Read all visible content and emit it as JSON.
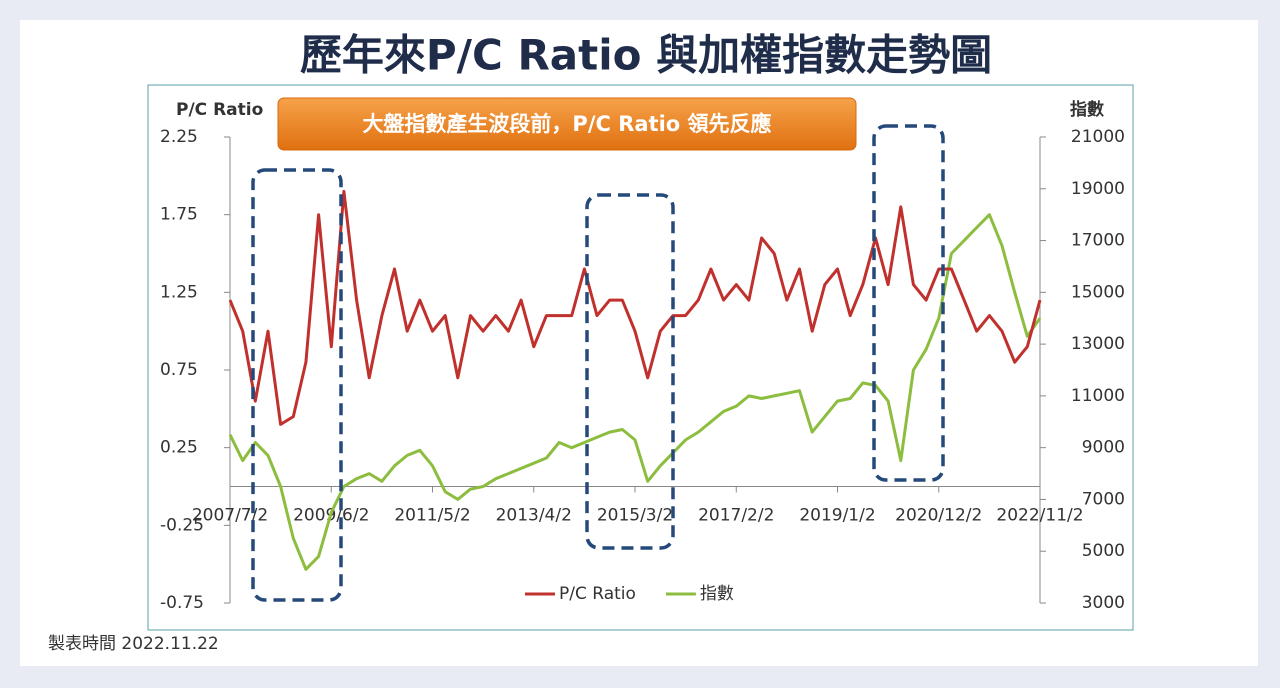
{
  "chart_data": {
    "type": "line",
    "title": "歷年來P/C Ratio 與加權指數走勢圖",
    "annotation": "大盤指數產生波段前，P/C Ratio 領先反應",
    "footnote": "製表時間 2022.11.22",
    "y_label": "P/C Ratio",
    "y2_label": "指數",
    "categories": [
      "2007/7/2",
      null,
      null,
      null,
      null,
      null,
      null,
      null,
      "2009/6/2",
      null,
      null,
      null,
      null,
      null,
      null,
      null,
      "2011/5/2",
      null,
      null,
      null,
      null,
      null,
      null,
      null,
      "2013/4/2",
      null,
      null,
      null,
      null,
      null,
      null,
      null,
      "2015/3/2",
      null,
      null,
      null,
      null,
      null,
      null,
      null,
      "2017/2/2",
      null,
      null,
      null,
      null,
      null,
      null,
      null,
      "2019/1/2",
      null,
      null,
      null,
      null,
      null,
      null,
      null,
      "2020/12/2",
      null,
      null,
      null,
      null,
      null,
      null,
      null,
      "2022/11/2"
    ],
    "series": [
      {
        "name": "P/C Ratio",
        "color": "#c0312d",
        "values": [
          1.2,
          1.0,
          0.55,
          1.0,
          0.4,
          0.45,
          0.8,
          1.75,
          0.9,
          1.9,
          1.2,
          0.7,
          1.1,
          1.4,
          1.0,
          1.2,
          1.0,
          1.1,
          0.7,
          1.1,
          1.0,
          1.1,
          1.0,
          1.2,
          0.9,
          1.1,
          1.1,
          1.1,
          1.4,
          1.1,
          1.2,
          1.2,
          1.0,
          0.7,
          1.0,
          1.1,
          1.1,
          1.2,
          1.4,
          1.2,
          1.3,
          1.2,
          1.6,
          1.5,
          1.2,
          1.4,
          1.0,
          1.3,
          1.4,
          1.1,
          1.3,
          1.6,
          1.3,
          1.8,
          1.3,
          1.2,
          1.4,
          1.4,
          1.2,
          1.0,
          1.1,
          1.0,
          0.8,
          0.9,
          1.2
        ]
      },
      {
        "name": "指數",
        "color": "#8cbd3f",
        "axis": "y2",
        "values": [
          9500,
          8500,
          9200,
          8700,
          7500,
          5500,
          4300,
          4800,
          6500,
          7500,
          7800,
          8000,
          7700,
          8300,
          8700,
          8900,
          8300,
          7300,
          7000,
          7400,
          7500,
          7800,
          8000,
          8200,
          8400,
          8600,
          9200,
          9000,
          9200,
          9400,
          9600,
          9700,
          9300,
          7700,
          8300,
          8800,
          9300,
          9600,
          10000,
          10400,
          10600,
          11000,
          10900,
          11000,
          11100,
          11200,
          9600,
          10200,
          10800,
          10900,
          11500,
          11400,
          10800,
          8500,
          12000,
          12800,
          14000,
          16500,
          17000,
          17500,
          18000,
          16800,
          15000,
          13300,
          14000
        ]
      }
    ],
    "ylim": [
      -0.75,
      2.25
    ],
    "yticks": [
      -0.75,
      -0.25,
      0.25,
      0.75,
      1.25,
      1.75,
      2.25
    ],
    "y2lim": [
      3000,
      21000
    ],
    "y2ticks": [
      3000,
      5000,
      7000,
      9000,
      11000,
      13000,
      15000,
      17000,
      19000,
      21000
    ],
    "legend": "bottom"
  }
}
